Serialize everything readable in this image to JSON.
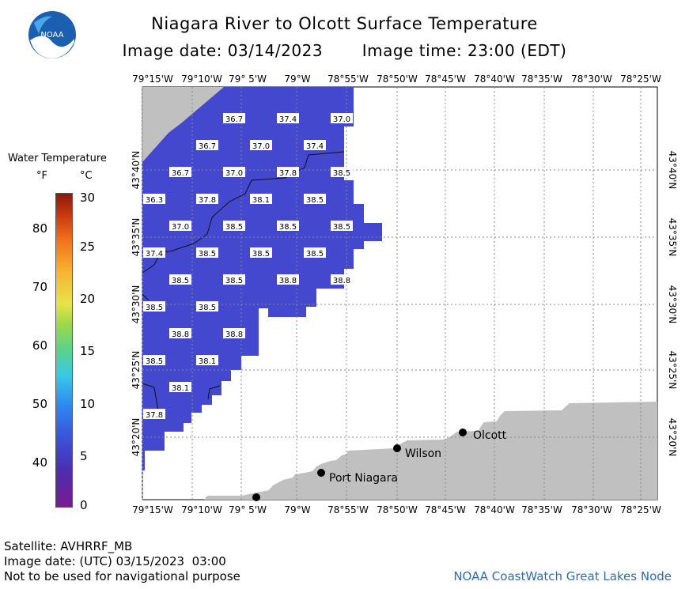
{
  "header": {
    "title": "Niagara River to Olcott Surface Temperature",
    "image_date": "Image date: 03/14/2023",
    "image_time": "Image time: 23:00 (EDT)"
  },
  "logo": {
    "text": "NOAA"
  },
  "legend": {
    "title": "Water Temperature",
    "unit_f": "°F",
    "unit_c": "°C",
    "f_ticks": [
      "80",
      "70",
      "60",
      "50",
      "40"
    ],
    "c_ticks": [
      "30",
      "25",
      "20",
      "15",
      "10",
      "5",
      "0"
    ]
  },
  "map": {
    "lon_labels": [
      "79°15'W",
      "79°10'W",
      "79° 5'W",
      "79°W",
      "78°55'W",
      "78°50'W",
      "78°45'W",
      "78°40'W",
      "78°35'W",
      "78°30'W",
      "78°25'W"
    ],
    "lat_labels": [
      "43°40'N",
      "43°35'N",
      "43°30'N",
      "43°25'N",
      "43°20'N"
    ],
    "towns": [
      "Port Niagara",
      "Wilson",
      "Olcott"
    ],
    "temperatures": [
      "36.7",
      "37.4",
      "37.0",
      "36.7",
      "37.0",
      "37.4",
      "36.7",
      "37.0",
      "37.8",
      "38.5",
      "36.3",
      "37.8",
      "38.1",
      "38.5",
      "37.0",
      "38.5",
      "38.5",
      "38.5",
      "37.4",
      "38.5",
      "38.5",
      "38.5",
      "38.5",
      "38.5",
      "38.8",
      "38.8",
      "38.5",
      "38.5",
      "38.8",
      "38.8",
      "38.5",
      "38.1",
      "38.1",
      "37.8"
    ],
    "colors": {
      "water": "#4448cf",
      "land": "#c0c0c0",
      "grid": "#888888"
    }
  },
  "footer": {
    "satellite": "Satellite: AVHRRF_MB",
    "utc_date": "Image date: (UTC) 03/15/2023  03:00",
    "disclaimer": "Not to be used for navigational purpose",
    "node": "NOAA CoastWatch Great Lakes Node"
  }
}
